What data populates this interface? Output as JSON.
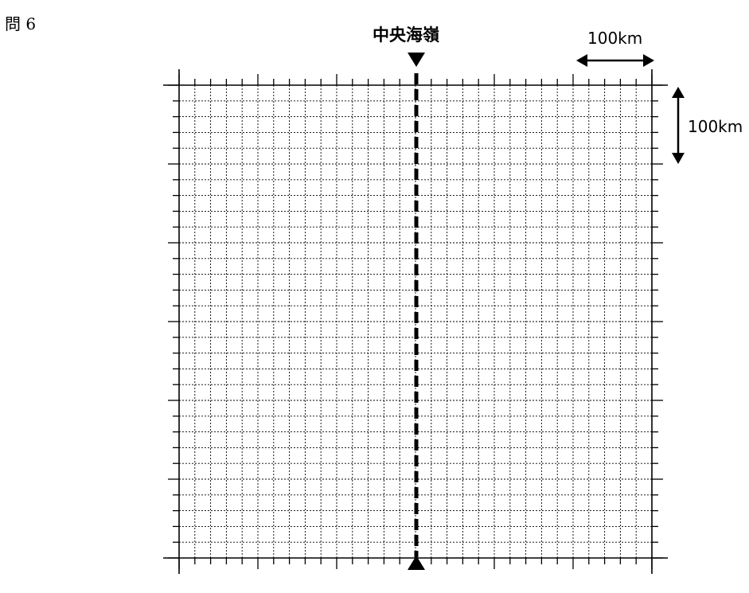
{
  "question_label": "問 6",
  "ridge": {
    "label": "中央海嶺"
  },
  "scale_bars": {
    "horizontal_label": "100km",
    "vertical_label": "100km"
  },
  "colors": {
    "ink": "#000000",
    "paper": "#ffffff"
  }
}
